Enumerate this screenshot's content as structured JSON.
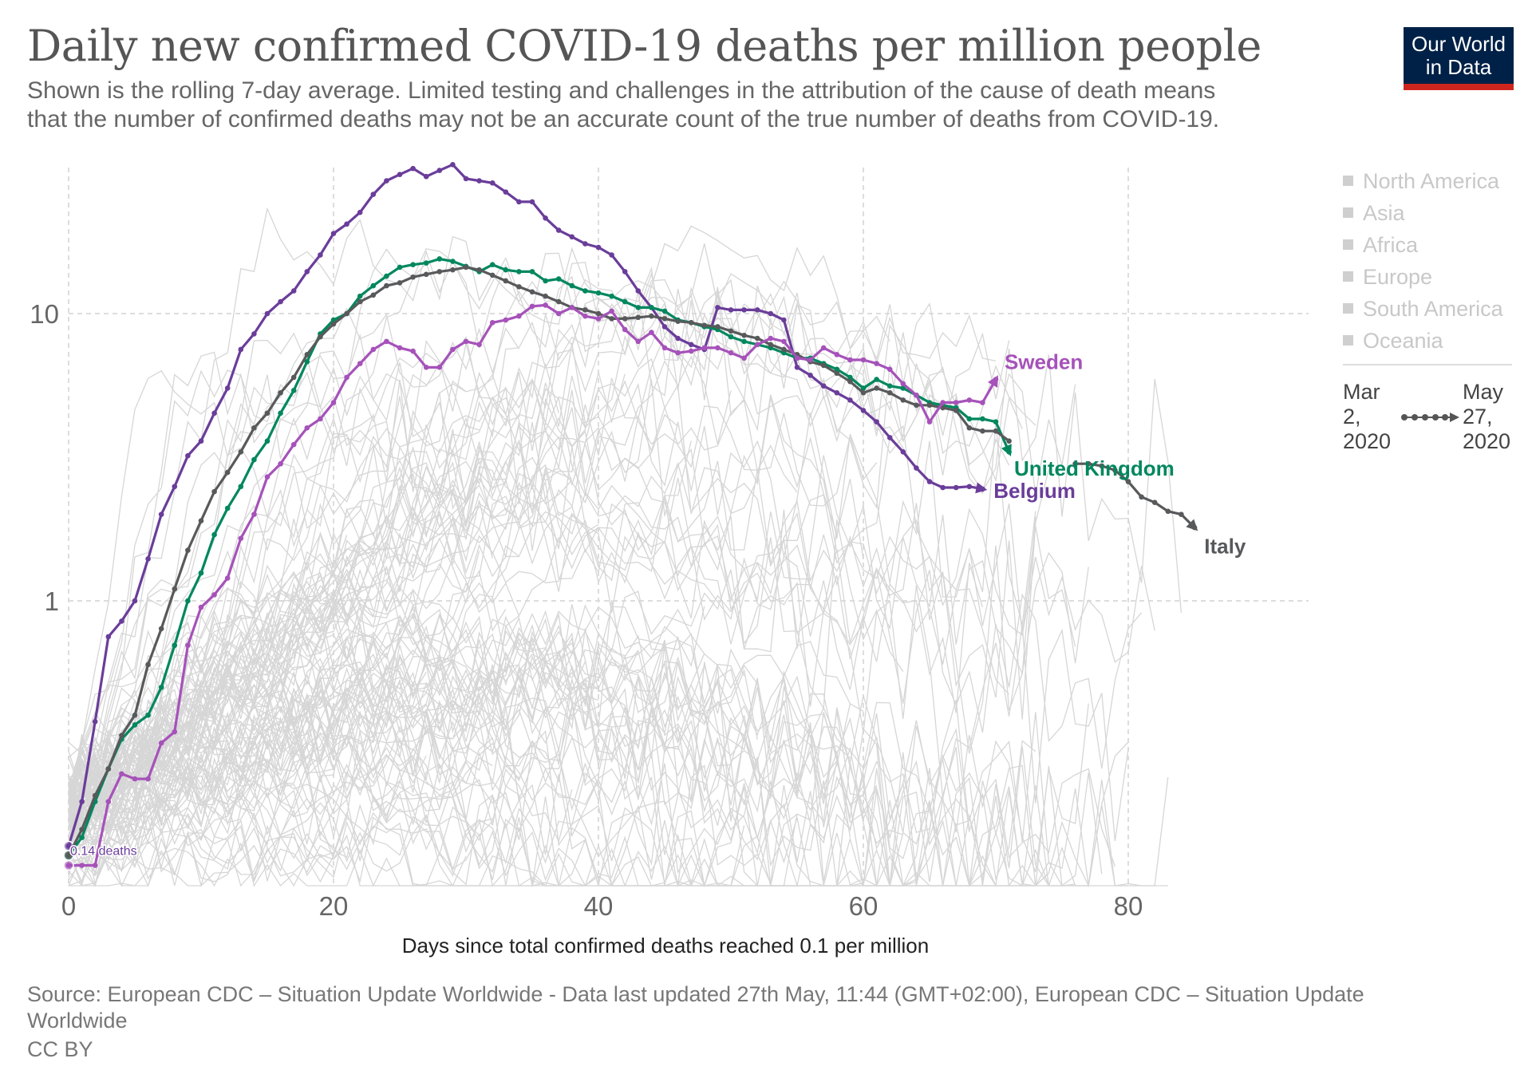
{
  "header": {
    "title": "Daily new confirmed COVID-19 deaths per million people",
    "subtitle_line1": "Shown is the rolling 7-day average. Limited testing and challenges in the attribution of the cause of death means",
    "subtitle_line2": "that the number of confirmed deaths may not be an accurate count of the true number of deaths from COVID-19.",
    "logo_line1": "Our World",
    "logo_line2": "in Data"
  },
  "legend": {
    "regions": [
      "North America",
      "Asia",
      "Africa",
      "Europe",
      "South America",
      "Oceania"
    ]
  },
  "timeline": {
    "start": "Mar 2, 2020",
    "start_lines": [
      "Mar",
      "2,",
      "2020"
    ],
    "end": "May 27, 2020",
    "end_lines": [
      "May",
      "27,",
      "2020"
    ]
  },
  "footer": {
    "source_line1": "Source: European CDC – Situation Update Worldwide - Data last updated 27th May, 11:44 (GMT+02:00), European CDC – Situation Update",
    "source_line2": "Worldwide",
    "license": "CC BY"
  },
  "colors": {
    "Belgium": "#6a3d9a",
    "United Kingdom": "#00875e",
    "Italy": "#58595b",
    "Sweden": "#a652ba",
    "background_lines": "#d6d6d6",
    "grid": "#dddddd"
  },
  "chart_data": {
    "type": "line",
    "title": "Daily new confirmed COVID-19 deaths per million people",
    "xlabel": "Days since total confirmed deaths reached 0.1 per million",
    "ylabel": "",
    "xlim": [
      0,
      93
    ],
    "ylim": [
      0.1,
      30
    ],
    "y_scale": "log",
    "x_ticks": [
      0,
      20,
      40,
      60,
      80
    ],
    "y_ticks": [
      1,
      10
    ],
    "y_tick_labels": [
      "1",
      "10"
    ],
    "grid": true,
    "annotations": [
      {
        "text": "0.14 deaths",
        "x": 0,
        "y": 0.14
      }
    ],
    "series": [
      {
        "name": "Belgium",
        "x": [
          0,
          1,
          2,
          3,
          4,
          5,
          6,
          7,
          8,
          9,
          10,
          11,
          12,
          13,
          14,
          15,
          16,
          17,
          18,
          19,
          20,
          21,
          22,
          23,
          24,
          25,
          26,
          27,
          28,
          29,
          30,
          31,
          32,
          33,
          34,
          35,
          36,
          37,
          38,
          39,
          40,
          41,
          42,
          43,
          44,
          45,
          46,
          47,
          48,
          49,
          50,
          51,
          52,
          53,
          54,
          55,
          56,
          57,
          58,
          59,
          60,
          61,
          62,
          63,
          64,
          65,
          66,
          67,
          68,
          69
        ],
        "y": [
          0.14,
          0.2,
          0.38,
          0.75,
          0.85,
          1.0,
          1.4,
          2.0,
          2.5,
          3.2,
          3.6,
          4.5,
          5.5,
          7.5,
          8.5,
          10.0,
          11.0,
          12.0,
          14.0,
          16.0,
          19.0,
          20.5,
          22.5,
          26.0,
          29.0,
          30.5,
          32.0,
          30.0,
          31.5,
          33.0,
          29.5,
          29.0,
          28.5,
          26.5,
          24.5,
          24.5,
          21.5,
          19.5,
          18.5,
          17.5,
          17.0,
          16.0,
          14.0,
          12.0,
          10.5,
          9.0,
          8.2,
          7.8,
          7.5,
          10.5,
          10.3,
          10.3,
          10.3,
          10.0,
          9.5,
          6.5,
          6.1,
          5.6,
          5.3,
          5.0,
          4.6,
          4.2,
          3.7,
          3.3,
          2.9,
          2.6,
          2.48,
          2.48,
          2.5,
          2.45
        ]
      },
      {
        "name": "United Kingdom",
        "x": [
          0,
          1,
          2,
          3,
          4,
          5,
          6,
          7,
          8,
          9,
          10,
          11,
          12,
          13,
          14,
          15,
          16,
          17,
          18,
          19,
          20,
          21,
          22,
          23,
          24,
          25,
          26,
          27,
          28,
          29,
          30,
          31,
          32,
          33,
          34,
          35,
          36,
          37,
          38,
          39,
          40,
          41,
          42,
          43,
          44,
          45,
          46,
          47,
          48,
          49,
          50,
          51,
          52,
          53,
          54,
          55,
          56,
          57,
          58,
          59,
          60,
          61,
          62,
          63,
          64,
          65,
          66,
          67,
          68,
          69,
          70,
          71
        ],
        "y": [
          0.13,
          0.15,
          0.2,
          0.26,
          0.33,
          0.37,
          0.4,
          0.5,
          0.7,
          1.0,
          1.25,
          1.7,
          2.1,
          2.5,
          3.1,
          3.6,
          4.5,
          5.4,
          6.8,
          8.5,
          9.5,
          10.0,
          11.5,
          12.5,
          13.5,
          14.5,
          14.8,
          15.0,
          15.5,
          15.2,
          14.6,
          14.0,
          14.8,
          14.2,
          14.0,
          14.0,
          13.0,
          13.2,
          12.5,
          12.0,
          11.8,
          11.5,
          11.0,
          10.5,
          10.5,
          10.2,
          9.5,
          9.3,
          9.0,
          8.8,
          8.3,
          8.0,
          7.8,
          7.6,
          7.3,
          7.0,
          7.0,
          6.7,
          6.4,
          6.0,
          5.5,
          5.9,
          5.6,
          5.5,
          5.2,
          4.9,
          4.8,
          4.7,
          4.3,
          4.3,
          4.2,
          3.3
        ]
      },
      {
        "name": "Italy",
        "x": [
          0,
          1,
          2,
          3,
          4,
          5,
          6,
          7,
          8,
          9,
          10,
          11,
          12,
          13,
          14,
          15,
          16,
          17,
          18,
          19,
          20,
          21,
          22,
          23,
          24,
          25,
          26,
          27,
          28,
          29,
          30,
          31,
          32,
          33,
          34,
          35,
          36,
          37,
          38,
          39,
          40,
          41,
          42,
          43,
          44,
          45,
          46,
          47,
          48,
          49,
          50,
          51,
          52,
          53,
          54,
          55,
          56,
          57,
          58,
          59,
          60,
          61,
          62,
          63,
          64,
          65,
          66,
          67,
          68,
          69,
          70,
          71,
          72,
          73,
          74,
          75,
          76,
          77,
          78,
          79,
          80,
          81,
          82,
          83,
          84,
          85
        ],
        "y": [
          0.13,
          0.16,
          0.21,
          0.26,
          0.34,
          0.4,
          0.6,
          0.8,
          1.1,
          1.5,
          1.9,
          2.4,
          2.8,
          3.3,
          4.0,
          4.5,
          5.3,
          6.0,
          7.2,
          8.3,
          9.2,
          10.0,
          11.0,
          11.6,
          12.5,
          12.8,
          13.4,
          13.7,
          14.0,
          14.2,
          14.5,
          14.2,
          13.6,
          13.0,
          12.4,
          11.9,
          11.5,
          11.0,
          10.5,
          10.3,
          10.0,
          9.6,
          9.6,
          9.7,
          9.8,
          9.6,
          9.4,
          9.3,
          9.1,
          9.0,
          8.7,
          8.4,
          8.2,
          7.8,
          7.5,
          7.2,
          6.8,
          6.6,
          6.2,
          5.8,
          5.3,
          5.5,
          5.3,
          5.0,
          4.8,
          4.8,
          4.7,
          4.6,
          4.0,
          3.9,
          3.9,
          3.6,
          null,
          null,
          null,
          null,
          3.0,
          3.0,
          2.95,
          2.85,
          2.6,
          2.3,
          2.2,
          2.05,
          2.0,
          1.8
        ]
      },
      {
        "name": "Sweden",
        "x": [
          0,
          1,
          2,
          3,
          4,
          5,
          6,
          7,
          8,
          9,
          10,
          11,
          12,
          13,
          14,
          15,
          16,
          17,
          18,
          19,
          20,
          21,
          22,
          23,
          24,
          25,
          26,
          27,
          28,
          29,
          30,
          31,
          32,
          33,
          34,
          35,
          36,
          37,
          38,
          39,
          40,
          41,
          42,
          43,
          44,
          45,
          46,
          47,
          48,
          49,
          50,
          51,
          52,
          53,
          54,
          55,
          56,
          57,
          58,
          59,
          60,
          61,
          62,
          63,
          64,
          65,
          66,
          67,
          68,
          69,
          70
        ],
        "y": [
          0.12,
          0.12,
          0.12,
          0.2,
          0.25,
          0.24,
          0.24,
          0.32,
          0.35,
          0.7,
          0.95,
          1.05,
          1.2,
          1.65,
          2.0,
          2.7,
          3.0,
          3.5,
          4.0,
          4.3,
          4.9,
          6.0,
          6.7,
          7.5,
          8.0,
          7.6,
          7.4,
          6.5,
          6.5,
          7.5,
          8.0,
          7.8,
          9.3,
          9.5,
          9.8,
          10.6,
          10.7,
          10.0,
          10.5,
          9.8,
          9.6,
          10.2,
          8.8,
          8.0,
          8.6,
          7.6,
          7.3,
          7.4,
          7.6,
          7.6,
          7.3,
          7.0,
          7.8,
          8.2,
          8.0,
          7.0,
          6.9,
          7.6,
          7.2,
          6.9,
          6.9,
          6.7,
          6.4,
          5.7,
          5.2,
          4.2,
          4.9,
          4.9,
          5.0,
          4.9,
          5.9
        ]
      }
    ],
    "end_labels": [
      "Sweden",
      "United Kingdom",
      "Belgium",
      "Italy"
    ]
  }
}
